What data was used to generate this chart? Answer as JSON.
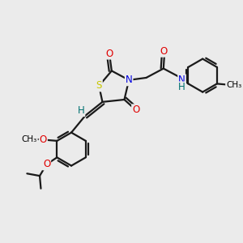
{
  "bg_color": "#ebebeb",
  "atom_colors": {
    "S": "#c8c800",
    "N": "#0000e0",
    "O": "#e00000",
    "H": "#007070",
    "C": "#000000"
  },
  "bond_color": "#1a1a1a",
  "bond_width": 1.6,
  "figsize": [
    3.0,
    3.0
  ],
  "dpi": 100
}
